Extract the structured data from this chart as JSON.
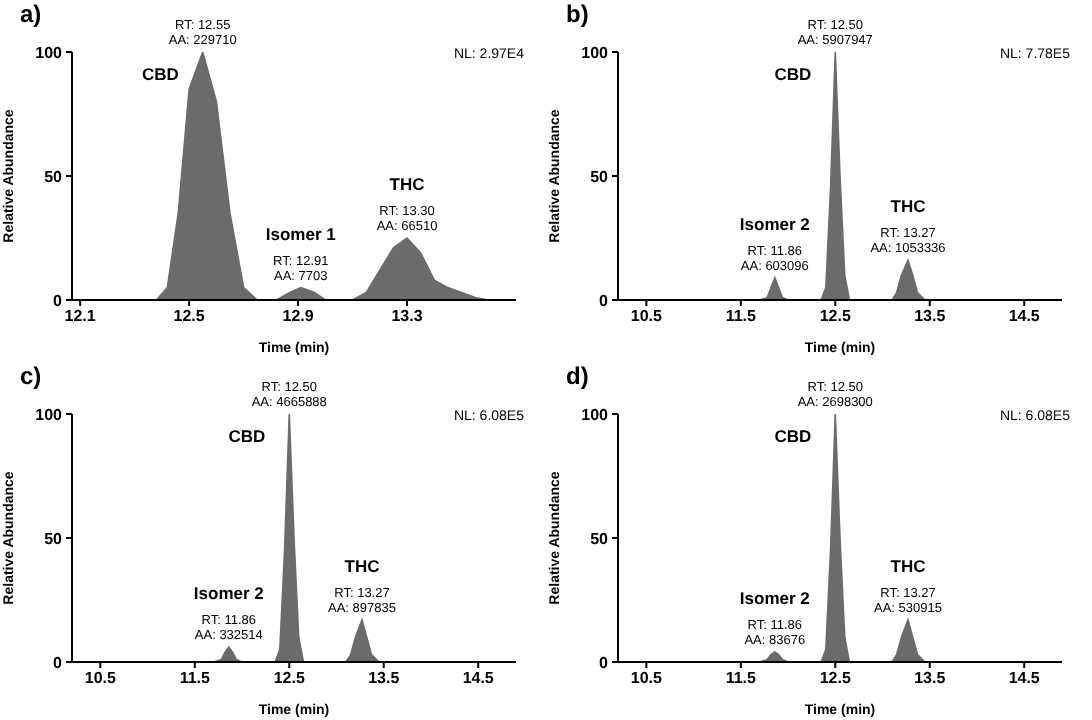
{
  "chart_data": [
    {
      "type": "area",
      "title": "a)",
      "xlabel": "Time (min)",
      "ylabel": "Relative Abundance",
      "color": "#6b6b6b",
      "legend": false,
      "grid": false,
      "x": [
        12.07,
        12.38,
        12.42,
        12.46,
        12.5,
        12.55,
        12.6,
        12.65,
        12.7,
        12.75,
        12.82,
        12.87,
        12.91,
        12.96,
        13.0,
        13.1,
        13.15,
        13.2,
        13.25,
        13.3,
        13.35,
        13.4,
        13.45,
        13.5,
        13.55,
        13.6,
        13.7
      ],
      "values": [
        0,
        0,
        5,
        35,
        85,
        100,
        80,
        35,
        5,
        0,
        0,
        3,
        5,
        3,
        0,
        0,
        3,
        12,
        21,
        25,
        19,
        8,
        5,
        3,
        1,
        0,
        0
      ],
      "xlim": [
        12.07,
        13.7
      ],
      "xticks": [
        12.1,
        12.5,
        12.9,
        13.3
      ],
      "ylim": [
        0,
        100
      ],
      "yticks": [
        0,
        50,
        100
      ],
      "annotations": [
        "NL: 2.97E4",
        {
          "text": "CBD",
          "x": 12.55,
          "y": 100
        },
        {
          "text": "RT: 12.55\nAA: 229710",
          "x": 12.55,
          "y": 100
        },
        {
          "text": "Isomer 1",
          "x": 12.91,
          "y": 5
        },
        {
          "text": "RT: 12.91\nAA: 7703",
          "x": 12.91,
          "y": 5
        },
        {
          "text": "THC",
          "x": 13.3,
          "y": 25
        },
        {
          "text": "RT: 13.30\nAA: 66510",
          "x": 13.3,
          "y": 25
        }
      ]
    },
    {
      "type": "area",
      "title": "b)",
      "xlabel": "Time (min)",
      "ylabel": "Relative Abundance",
      "color": "#6b6b6b",
      "legend": false,
      "grid": false,
      "x": [
        10.2,
        11.7,
        11.78,
        11.82,
        11.86,
        11.9,
        11.94,
        12.0,
        12.35,
        12.4,
        12.45,
        12.5,
        12.55,
        12.6,
        12.65,
        13.1,
        13.15,
        13.2,
        13.27,
        13.32,
        13.37,
        13.45,
        14.9
      ],
      "values": [
        0,
        0,
        1,
        5,
        9,
        5,
        1,
        0,
        0,
        5,
        45,
        100,
        50,
        10,
        0,
        0,
        3,
        10,
        16,
        10,
        3,
        0,
        0
      ],
      "xlim": [
        10.2,
        14.9
      ],
      "xticks": [
        10.5,
        11.5,
        12.5,
        13.5,
        14.5
      ],
      "ylim": [
        0,
        100
      ],
      "yticks": [
        0,
        50,
        100
      ],
      "annotations": [
        "NL: 7.78E5",
        {
          "text": "CBD",
          "x": 12.5,
          "y": 100
        },
        {
          "text": "RT: 12.50\nAA: 5907947",
          "x": 12.5,
          "y": 100
        },
        {
          "text": "Isomer 2",
          "x": 11.86,
          "y": 9
        },
        {
          "text": "RT: 11.86\nAA: 603096",
          "x": 11.86,
          "y": 9
        },
        {
          "text": "THC",
          "x": 13.27,
          "y": 16
        },
        {
          "text": "RT: 13.27\nAA: 1053336",
          "x": 13.27,
          "y": 16
        }
      ]
    },
    {
      "type": "area",
      "title": "c)",
      "xlabel": "Time (min)",
      "ylabel": "Relative Abundance",
      "color": "#6b6b6b",
      "legend": false,
      "grid": false,
      "x": [
        10.2,
        11.7,
        11.78,
        11.82,
        11.86,
        11.9,
        11.94,
        12.0,
        12.35,
        12.4,
        12.45,
        12.5,
        12.55,
        12.6,
        12.65,
        13.1,
        13.15,
        13.2,
        13.27,
        13.32,
        13.37,
        13.45,
        14.9
      ],
      "values": [
        0,
        0,
        1,
        4,
        6,
        4,
        1,
        0,
        0,
        5,
        45,
        100,
        50,
        10,
        0,
        0,
        3,
        10,
        17,
        10,
        3,
        0,
        0
      ],
      "xlim": [
        10.2,
        14.9
      ],
      "xticks": [
        10.5,
        11.5,
        12.5,
        13.5,
        14.5
      ],
      "ylim": [
        0,
        100
      ],
      "yticks": [
        0,
        50,
        100
      ],
      "annotations": [
        "NL: 6.08E5",
        {
          "text": "CBD",
          "x": 12.5,
          "y": 100
        },
        {
          "text": "RT: 12.50\nAA: 4665888",
          "x": 12.5,
          "y": 100
        },
        {
          "text": "Isomer 2",
          "x": 11.86,
          "y": 6
        },
        {
          "text": "RT: 11.86\nAA: 332514",
          "x": 11.86,
          "y": 6
        },
        {
          "text": "THC",
          "x": 13.27,
          "y": 17
        },
        {
          "text": "RT: 13.27\nAA: 897835",
          "x": 13.27,
          "y": 17
        }
      ]
    },
    {
      "type": "area",
      "title": "d)",
      "xlabel": "Time (min)",
      "ylabel": "Relative Abundance",
      "color": "#6b6b6b",
      "legend": false,
      "grid": false,
      "x": [
        10.2,
        11.7,
        11.78,
        11.82,
        11.86,
        11.9,
        11.94,
        12.0,
        12.35,
        12.4,
        12.45,
        12.5,
        12.55,
        12.6,
        12.65,
        13.1,
        13.15,
        13.2,
        13.27,
        13.32,
        13.37,
        13.45,
        14.9
      ],
      "values": [
        0,
        0,
        1,
        3,
        4,
        3,
        1,
        0,
        0,
        5,
        45,
        100,
        50,
        10,
        0,
        0,
        3,
        10,
        17,
        10,
        3,
        0,
        0
      ],
      "xlim": [
        10.2,
        14.9
      ],
      "xticks": [
        10.5,
        11.5,
        12.5,
        13.5,
        14.5
      ],
      "ylim": [
        0,
        100
      ],
      "yticks": [
        0,
        50,
        100
      ],
      "annotations": [
        "NL: 6.08E5",
        {
          "text": "CBD",
          "x": 12.5,
          "y": 100
        },
        {
          "text": "RT: 12.50\nAA: 2698300",
          "x": 12.5,
          "y": 100
        },
        {
          "text": "Isomer 2",
          "x": 11.86,
          "y": 4
        },
        {
          "text": "RT: 11.86\nAA: 83676",
          "x": 11.86,
          "y": 4
        },
        {
          "text": "THC",
          "x": 13.27,
          "y": 17
        },
        {
          "text": "RT: 13.27\nAA: 530915",
          "x": 13.27,
          "y": 17
        }
      ]
    }
  ]
}
